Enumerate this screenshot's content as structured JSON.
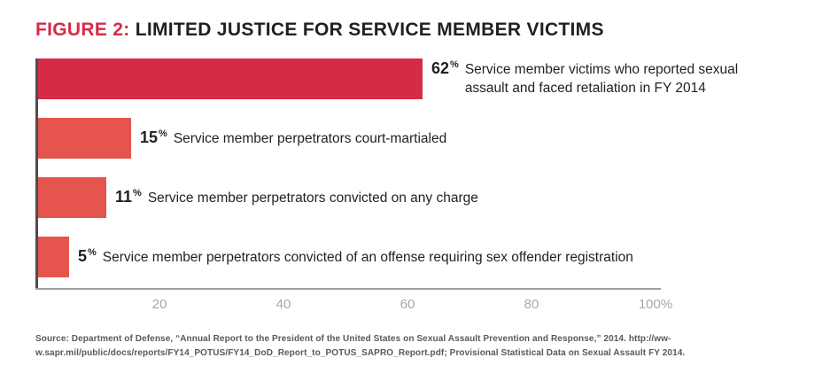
{
  "title": {
    "prefix": "FIGURE 2:",
    "rest": "LIMITED JUSTICE FOR SERVICE MEMBER VICTIMS"
  },
  "chart_data": {
    "type": "bar",
    "orientation": "horizontal",
    "xlim": [
      0,
      100
    ],
    "grid": false,
    "legend": false,
    "x_ticks": [
      {
        "value": 20,
        "label": "20"
      },
      {
        "value": 40,
        "label": "40"
      },
      {
        "value": 60,
        "label": "60"
      },
      {
        "value": 80,
        "label": "80"
      },
      {
        "value": 100,
        "label": "100%"
      }
    ],
    "rows": [
      {
        "value": 62,
        "label": "Service member victims who reported sexual assault and faced retaliation in FY 2014",
        "color": "#d62b47"
      },
      {
        "value": 15,
        "label": "Service member perpetrators court-martialed",
        "color": "#e6544f"
      },
      {
        "value": 11,
        "label": "Service member perpetrators convicted on any charge",
        "color": "#e6544f"
      },
      {
        "value": 5,
        "label": "Service member perpetrators convicted of an offense requiring sex offender registration",
        "color": "#e6544f"
      }
    ]
  },
  "source": {
    "line1": "Source: Department of Defense, “Annual Report to the President of the United States on Sexual Assault Prevention and Response,” 2014. http://ww-",
    "line2": "w.sapr.mil/public/docs/reports/FY14_POTUS/FY14_DoD_Report_to_POTUS_SAPRO_Report.pdf; Provisional Statistical Data on Sexual Assault FY 2014."
  },
  "colors": {
    "bar_primary": "#d62b47",
    "bar_secondary": "#e6544f",
    "axis_line": "#9d9fa2",
    "y_axis_line": "#4d4d4f",
    "tick_text": "#a6a8ab",
    "text": "#231f20"
  }
}
